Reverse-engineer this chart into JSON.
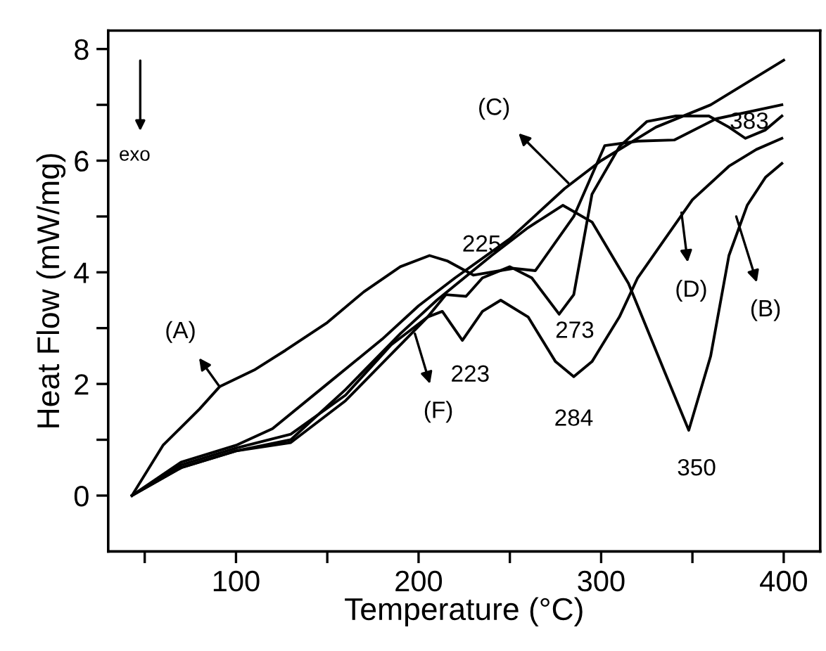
{
  "chart_data": {
    "type": "line",
    "xlabel": "Temperature (°C)",
    "ylabel": "Heat Flow (mW/mg)",
    "xlim": [
      30,
      420
    ],
    "ylim": [
      -1,
      8.33
    ],
    "xticks": [
      {
        "value": 50,
        "label": null
      },
      100,
      {
        "value": 150,
        "label": null
      },
      200,
      {
        "value": 250,
        "label": null
      },
      300,
      {
        "value": 350,
        "label": null
      },
      400
    ],
    "yticks": [
      0,
      {
        "value": 1,
        "label": null
      },
      2,
      {
        "value": 3,
        "label": null
      },
      4,
      {
        "value": 5,
        "label": null
      },
      6,
      {
        "value": 7,
        "label": null
      },
      8
    ],
    "grid": false,
    "legend": false,
    "marker": "none",
    "line_style": "solid",
    "series": [
      {
        "color": "#000000",
        "x": [
          43,
          60,
          80,
          91,
          110,
          127,
          150,
          170,
          190,
          206,
          216,
          230,
          252,
          264,
          285,
          302,
          320,
          340,
          363,
          399
        ],
        "values": [
          0,
          0.9,
          1.55,
          1.95,
          2.25,
          2.6,
          3.1,
          3.65,
          4.1,
          4.3,
          4.2,
          3.95,
          4.07,
          4.03,
          5.0,
          6.27,
          6.35,
          6.37,
          6.75,
          7.0
        ]
      },
      {
        "color": "#000000",
        "x": [
          43,
          70,
          100,
          130,
          160,
          190,
          210,
          240,
          260,
          279,
          295,
          315,
          335,
          348,
          360,
          370,
          380,
          390,
          399
        ],
        "values": [
          0,
          0.5,
          0.8,
          1.0,
          1.9,
          2.9,
          3.5,
          4.3,
          4.8,
          5.2,
          4.9,
          3.8,
          2.2,
          1.17,
          2.5,
          4.3,
          5.2,
          5.7,
          5.95
        ]
      },
      {
        "color": "#000000",
        "x": [
          43,
          70,
          100,
          120,
          150,
          180,
          200,
          220,
          250,
          280,
          300,
          330,
          360,
          400
        ],
        "values": [
          0,
          0.6,
          0.9,
          1.2,
          2.0,
          2.8,
          3.4,
          3.9,
          4.6,
          5.5,
          6.0,
          6.6,
          7.0,
          7.8
        ]
      },
      {
        "color": "#000000",
        "x": [
          43,
          70,
          100,
          130,
          160,
          190,
          205,
          213,
          224,
          235,
          245,
          260,
          275,
          285,
          295,
          310,
          320,
          335,
          350,
          370,
          385,
          399
        ],
        "values": [
          0,
          0.5,
          0.8,
          0.95,
          1.7,
          2.7,
          3.2,
          3.3,
          2.78,
          3.3,
          3.5,
          3.2,
          2.4,
          2.13,
          2.4,
          3.2,
          3.9,
          4.6,
          5.3,
          5.9,
          6.2,
          6.4
        ]
      },
      {
        "color": "#000000",
        "x": [
          43,
          70,
          100,
          130,
          160,
          185,
          195,
          205,
          215,
          226,
          235,
          250,
          262,
          277,
          285,
          295,
          310,
          325,
          341,
          359,
          370,
          379,
          390,
          399
        ],
        "values": [
          0,
          0.55,
          0.85,
          1.1,
          1.8,
          2.7,
          2.95,
          3.2,
          3.6,
          3.57,
          3.9,
          4.1,
          3.9,
          3.25,
          3.6,
          5.4,
          6.25,
          6.7,
          6.8,
          6.8,
          6.6,
          6.4,
          6.55,
          6.8
        ]
      }
    ],
    "annotations": [
      "exo",
      {
        "text": "(A)",
        "x": 91,
        "y": 1.95
      },
      {
        "text": "(C)",
        "x": 282,
        "y": 5.6
      },
      {
        "text": "(D)",
        "x": 344,
        "y": 5.07
      },
      {
        "text": "(B)",
        "x": 374,
        "y": 5.0
      },
      {
        "text": "(F)",
        "x": 198,
        "y": 2.9
      },
      {
        "text": "225",
        "x": 226,
        "y": 3.57
      },
      {
        "text": "223",
        "x": 224,
        "y": 2.78
      },
      {
        "text": "273",
        "x": 277,
        "y": 3.25
      },
      {
        "text": "284",
        "x": 285,
        "y": 2.13
      },
      {
        "text": "350",
        "x": 348,
        "y": 1.17
      },
      {
        "text": "383",
        "x": 379,
        "y": 6.4
      }
    ]
  }
}
